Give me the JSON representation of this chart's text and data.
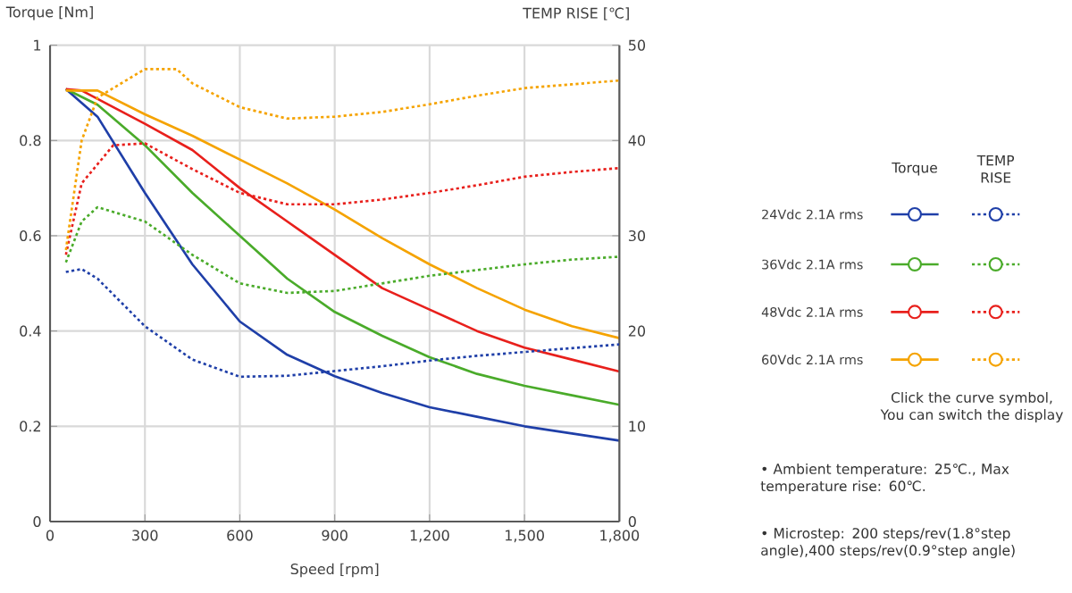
{
  "chart_data": {
    "type": "line",
    "xlabel": "Speed [rpm]",
    "ylabel": "Torque [Nm]",
    "y2label": "TEMP RISE [℃]",
    "xlim": [
      0,
      1800
    ],
    "xticks": [
      0,
      300,
      600,
      900,
      {
        "value": 1200,
        "label": "1,200"
      },
      {
        "value": 1500,
        "label": "1,500"
      },
      {
        "value": 1800,
        "label": "1,800"
      }
    ],
    "ylim": [
      0,
      1
    ],
    "yticks": [
      0,
      0.2,
      0.4,
      0.6,
      0.8,
      1
    ],
    "y2lim": [
      0,
      50
    ],
    "y2ticks": [
      0,
      10,
      20,
      30,
      40,
      50
    ],
    "grid": true,
    "legend": "right",
    "marker": "none",
    "line_style": "solid",
    "series": [
      {
        "name": "24Vdc  2.1A rms",
        "color": "#1f3fa8",
        "x": [
          50,
          150,
          300,
          450,
          600,
          750,
          900,
          1050,
          1200,
          1350,
          1500,
          1650,
          1800
        ],
        "values": [
          0.908,
          0.85,
          0.69,
          0.54,
          0.42,
          0.35,
          0.305,
          0.27,
          0.24,
          0.22,
          0.2,
          0.185,
          0.17
        ]
      },
      {
        "name": "36Vdc  2.1A rms",
        "color": "#4aab2a",
        "x": [
          50,
          150,
          300,
          450,
          600,
          750,
          900,
          1050,
          1200,
          1350,
          1500,
          1650,
          1800
        ],
        "values": [
          0.908,
          0.875,
          0.79,
          0.69,
          0.6,
          0.51,
          0.44,
          0.39,
          0.345,
          0.31,
          0.285,
          0.265,
          0.245
        ]
      },
      {
        "name": "48Vdc  2.1A rms",
        "color": "#e8201c",
        "x": [
          50,
          100,
          300,
          450,
          600,
          750,
          900,
          1050,
          1200,
          1350,
          1500,
          1650,
          1800
        ],
        "values": [
          0.908,
          0.905,
          0.835,
          0.78,
          0.7,
          0.63,
          0.56,
          0.49,
          0.445,
          0.4,
          0.365,
          0.34,
          0.315
        ]
      },
      {
        "name": "60Vdc  2.1A rms",
        "color": "#f5a300",
        "x": [
          50,
          150,
          300,
          450,
          600,
          750,
          900,
          1050,
          1200,
          1350,
          1500,
          1650,
          1800
        ],
        "values": [
          0.905,
          0.905,
          0.855,
          0.81,
          0.76,
          0.71,
          0.655,
          0.595,
          0.54,
          0.49,
          0.445,
          0.41,
          0.385
        ]
      },
      {
        "color": "#1f3fa8",
        "axis": "y2",
        "line_style": "dotted",
        "x": [
          50,
          100,
          150,
          300,
          450,
          600,
          750,
          900,
          1050,
          1200,
          1350,
          1500,
          1650,
          1800
        ],
        "values": [
          26.2,
          26.5,
          25.5,
          20.5,
          17,
          15.2,
          15.3,
          15.8,
          16.3,
          16.9,
          17.4,
          17.8,
          18.2,
          18.6
        ]
      },
      {
        "color": "#4aab2a",
        "axis": "y2",
        "line_style": "dotted",
        "x": [
          50,
          100,
          150,
          300,
          450,
          600,
          750,
          900,
          1050,
          1200,
          1350,
          1500,
          1650,
          1800
        ],
        "values": [
          27.2,
          31.5,
          33,
          31.5,
          28,
          25,
          24,
          24.2,
          25,
          25.8,
          26.4,
          27,
          27.5,
          27.8
        ]
      },
      {
        "color": "#e8201c",
        "axis": "y2",
        "line_style": "dotted",
        "x": [
          50,
          100,
          200,
          300,
          450,
          600,
          750,
          900,
          1050,
          1200,
          1350,
          1500,
          1650,
          1800
        ],
        "values": [
          28,
          35.5,
          39.5,
          39.7,
          37,
          34.5,
          33.3,
          33.3,
          33.8,
          34.5,
          35.3,
          36.2,
          36.7,
          37.1
        ]
      },
      {
        "color": "#f5a300",
        "axis": "y2",
        "line_style": "dotted",
        "x": [
          50,
          100,
          150,
          300,
          400,
          450,
          600,
          750,
          900,
          1050,
          1200,
          1350,
          1500,
          1650,
          1800
        ],
        "values": [
          28.5,
          40,
          44.5,
          47.5,
          47.5,
          46,
          43.5,
          42.3,
          42.5,
          43,
          43.8,
          44.7,
          45.5,
          45.9,
          46.3
        ]
      }
    ],
    "annotations": [
      "Torque",
      "TEMP RISE",
      "Click the curve symbol, You can switch the display",
      "• Ambient temperature: 25℃., Max temperature rise: 60℃.",
      "• Microstep: 200 steps/rev(1.8°step angle),400 steps/rev(0.9°step angle)"
    ]
  }
}
